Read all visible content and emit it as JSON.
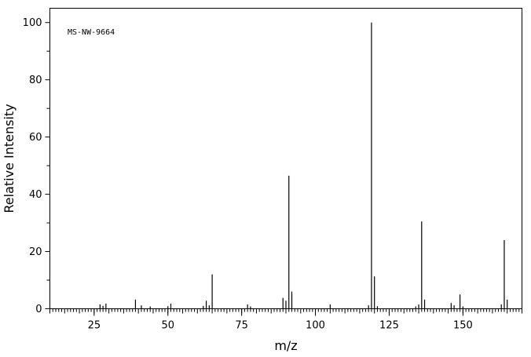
{
  "chart_data": {
    "type": "bar",
    "annotation": "MS-NW-9664",
    "xlabel": "m/z",
    "ylabel": "Relative Intensity",
    "xlim": [
      10,
      170
    ],
    "ylim": [
      0,
      105
    ],
    "x_ticks": [
      25,
      50,
      75,
      100,
      125,
      150
    ],
    "y_ticks": [
      0,
      20,
      40,
      60,
      80,
      100
    ],
    "grid": false,
    "legend": "none",
    "peaks": [
      {
        "mz": 27,
        "intensity": 1.5
      },
      {
        "mz": 28,
        "intensity": 1.0
      },
      {
        "mz": 29,
        "intensity": 1.8
      },
      {
        "mz": 39,
        "intensity": 3.2
      },
      {
        "mz": 41,
        "intensity": 1.2
      },
      {
        "mz": 44,
        "intensity": 0.8
      },
      {
        "mz": 50,
        "intensity": 0.9
      },
      {
        "mz": 51,
        "intensity": 1.8
      },
      {
        "mz": 62,
        "intensity": 1.0
      },
      {
        "mz": 63,
        "intensity": 2.8
      },
      {
        "mz": 64,
        "intensity": 1.2
      },
      {
        "mz": 65,
        "intensity": 12.0
      },
      {
        "mz": 77,
        "intensity": 1.5
      },
      {
        "mz": 78,
        "intensity": 0.8
      },
      {
        "mz": 89,
        "intensity": 3.8
      },
      {
        "mz": 90,
        "intensity": 2.8
      },
      {
        "mz": 91,
        "intensity": 46.5
      },
      {
        "mz": 92,
        "intensity": 6.0
      },
      {
        "mz": 105,
        "intensity": 1.5
      },
      {
        "mz": 118,
        "intensity": 1.2
      },
      {
        "mz": 119,
        "intensity": 100
      },
      {
        "mz": 120,
        "intensity": 11.3
      },
      {
        "mz": 121,
        "intensity": 0.9
      },
      {
        "mz": 134,
        "intensity": 0.8
      },
      {
        "mz": 135,
        "intensity": 1.5
      },
      {
        "mz": 136,
        "intensity": 30.5
      },
      {
        "mz": 137,
        "intensity": 3.2
      },
      {
        "mz": 146,
        "intensity": 2.0
      },
      {
        "mz": 147,
        "intensity": 1.2
      },
      {
        "mz": 149,
        "intensity": 5.0
      },
      {
        "mz": 150,
        "intensity": 0.8
      },
      {
        "mz": 163,
        "intensity": 1.5
      },
      {
        "mz": 164,
        "intensity": 24.0
      },
      {
        "mz": 165,
        "intensity": 3.2
      }
    ]
  }
}
